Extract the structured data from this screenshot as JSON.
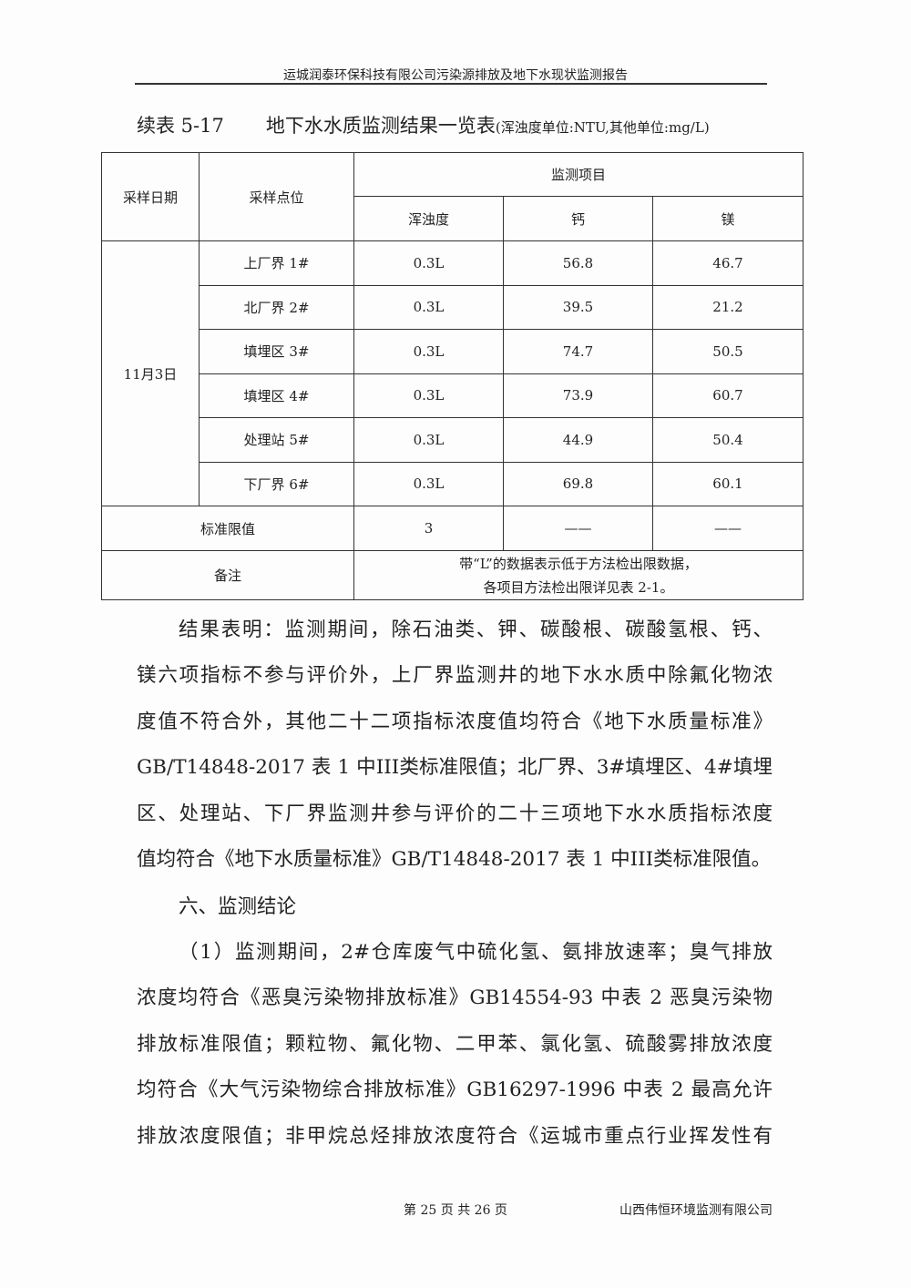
{
  "header": "运城润泰环保科技有限公司污染源排放及地下水现状监测报告",
  "table_title": {
    "number": "续表 5-17",
    "title": "地下水水质监测结果一览表",
    "unit": "(浑浊度单位:NTU,其他单位:mg/L)"
  },
  "table": {
    "col_date": "采样日期",
    "col_site": "采样点位",
    "col_items": "监测项目",
    "items": [
      "浑浊度",
      "钙",
      "镁"
    ],
    "date": "11月3日",
    "rows": [
      {
        "site": "上厂界 1#",
        "values": [
          "0.3L",
          "56.8",
          "46.7"
        ]
      },
      {
        "site": "北厂界 2#",
        "values": [
          "0.3L",
          "39.5",
          "21.2"
        ]
      },
      {
        "site": "填埋区 3#",
        "values": [
          "0.3L",
          "74.7",
          "50.5"
        ]
      },
      {
        "site": "填埋区 4#",
        "values": [
          "0.3L",
          "73.9",
          "60.7"
        ]
      },
      {
        "site": "处理站 5#",
        "values": [
          "0.3L",
          "44.9",
          "50.4"
        ]
      },
      {
        "site": "下厂界 6#",
        "values": [
          "0.3L",
          "69.8",
          "60.1"
        ]
      }
    ],
    "standard_label": "标准限值",
    "standard_values": [
      "3",
      "——",
      "——"
    ],
    "note_label": "备注",
    "note_lines": [
      "带“L”的数据表示低于方法检出限数据，",
      "各项目方法检出限详见表 2-1。"
    ]
  },
  "para1": [
    "结果表明：监测期间，除石油类、钾、碳酸根、碳酸氢根、钙、",
    "镁六项指标不参与评价外，上厂界监测井的地下水水质中除氟化物浓",
    "度值不符合外，其他二十二项指标浓度值均符合《地下水质量标准》",
    "GB/T14848-2017 表 1 中III类标准限值；北厂界、3#填埋区、4#填埋",
    "区、处理站、下厂界监测井参与评价的二十三项地下水水质指标浓度",
    "值均符合《地下水质量标准》GB/T14848-2017 表 1 中III类标准限值。"
  ],
  "section_heading": "六、监测结论",
  "para2": [
    "（1）监测期间，2#仓库废气中硫化氢、氨排放速率；臭气排放",
    "浓度均符合《恶臭污染物排放标准》GB14554-93 中表 2 恶臭污染物",
    "排放标准限值；颗粒物、氟化物、二甲苯、氯化氢、硫酸雾排放浓度",
    "均符合《大气污染物综合排放标准》GB16297-1996 中表 2 最高允许",
    "排放浓度限值；非甲烷总烃排放浓度符合《运城市重点行业挥发性有"
  ],
  "footer": {
    "page": "第 25 页 共 26 页",
    "company": "山西伟恒环境监测有限公司"
  }
}
